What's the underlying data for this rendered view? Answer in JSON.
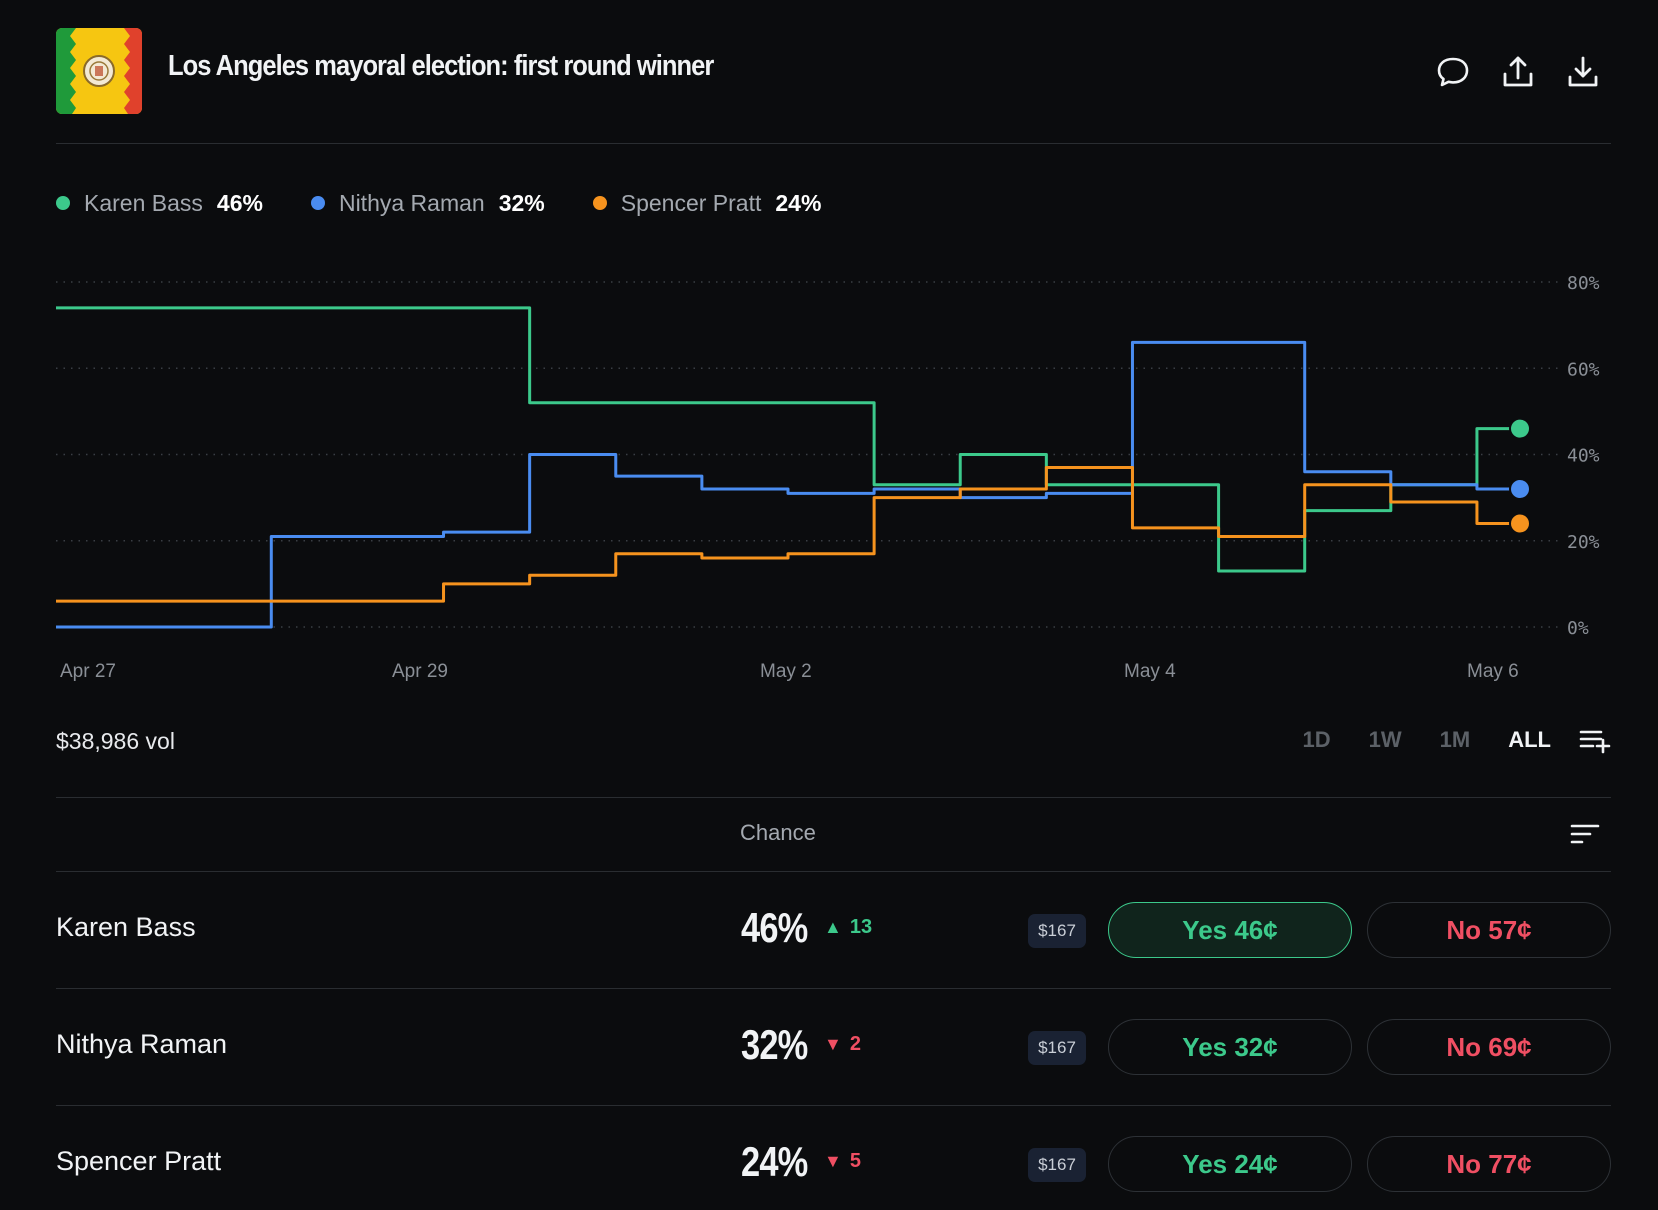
{
  "header": {
    "title": "Los Angeles mayoral election: first round winner",
    "icons": [
      "comment-icon",
      "share-icon",
      "download-icon"
    ]
  },
  "legend": [
    {
      "name": "Karen Bass",
      "value": "46%",
      "color": "#3cc98b"
    },
    {
      "name": "Nithya Raman",
      "value": "32%",
      "color": "#4a8cf0"
    },
    {
      "name": "Spencer Pratt",
      "value": "24%",
      "color": "#f6931e"
    }
  ],
  "chart_data": {
    "type": "line",
    "x_tick_labels": [
      "Apr 27",
      "Apr 29",
      "May 2",
      "May 4",
      "May 6"
    ],
    "y_tick_labels": [
      "0%",
      "20%",
      "40%",
      "60%",
      "80%"
    ],
    "ylim": [
      0,
      80
    ],
    "grid": true,
    "legend_position": "top-left",
    "x": [
      "Apr 27",
      "Apr 28",
      "Apr 28",
      "Apr 29",
      "Apr 29",
      "Apr 30",
      "Apr 30",
      "May 1",
      "May 1",
      "May 2",
      "May 2",
      "May 3",
      "May 3",
      "May 4",
      "May 4",
      "May 5",
      "May 5",
      "May 6"
    ],
    "series": [
      {
        "name": "Karen Bass",
        "color": "#3cc98b",
        "values": [
          74,
          74,
          74,
          74,
          74,
          74,
          52,
          52,
          52,
          52,
          33,
          40,
          33,
          33,
          13,
          27,
          33,
          46
        ]
      },
      {
        "name": "Nithya Raman",
        "color": "#4a8cf0",
        "values": [
          0,
          0,
          0,
          21,
          21,
          22,
          40,
          35,
          32,
          31,
          32,
          30,
          31,
          66,
          66,
          36,
          33,
          32
        ]
      },
      {
        "name": "Spencer Pratt",
        "color": "#f6931e",
        "values": [
          6,
          6,
          6,
          6,
          6,
          10,
          12,
          17,
          16,
          17,
          30,
          32,
          37,
          23,
          21,
          33,
          29,
          24
        ]
      }
    ]
  },
  "controls": {
    "volume": "$38,986 vol",
    "ranges": [
      "1D",
      "1W",
      "1M",
      "ALL"
    ],
    "active_range": "ALL"
  },
  "table": {
    "chance_header": "Chance",
    "rows": [
      {
        "name": "Karen Bass",
        "chance": "46%",
        "change": "13",
        "direction": "up",
        "price": "$167",
        "yes": "Yes 46¢",
        "no": "No 57¢",
        "selected": true
      },
      {
        "name": "Nithya Raman",
        "chance": "32%",
        "change": "2",
        "direction": "down",
        "price": "$167",
        "yes": "Yes 32¢",
        "no": "No 69¢",
        "selected": false
      },
      {
        "name": "Spencer Pratt",
        "chance": "24%",
        "change": "5",
        "direction": "down",
        "price": "$167",
        "yes": "Yes 24¢",
        "no": "No 77¢",
        "selected": false
      }
    ]
  }
}
